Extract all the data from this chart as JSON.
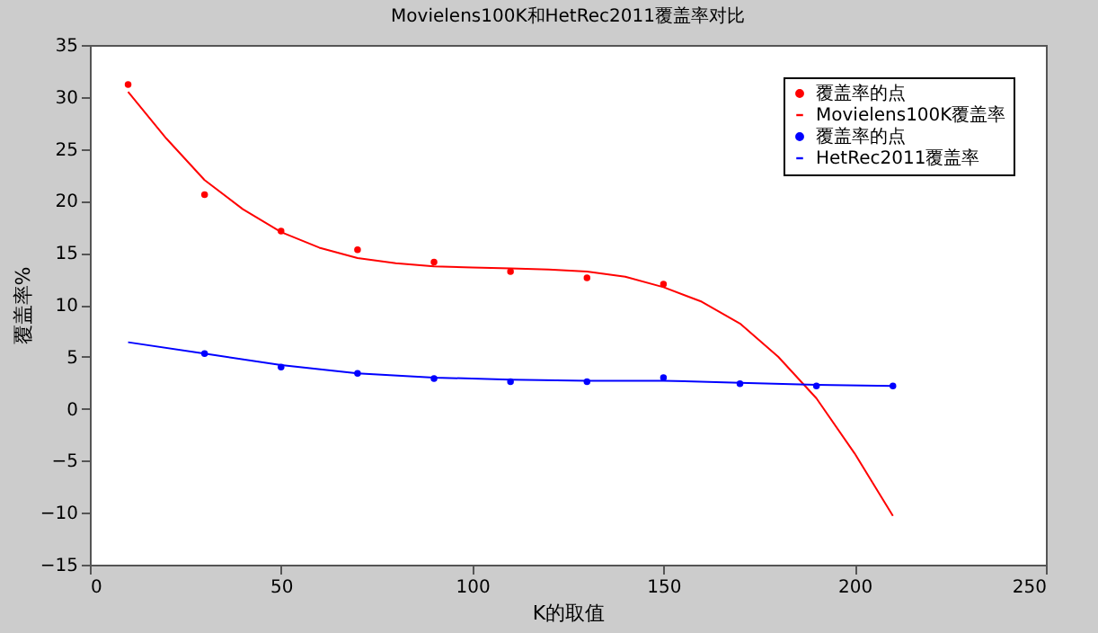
{
  "chart_data": {
    "type": "line",
    "title": "Movielens100K和HetRec2011覆盖率对比",
    "xlabel": "K的取值",
    "ylabel": "覆盖率%",
    "xlim": [
      0,
      250
    ],
    "xticks": [
      0,
      50,
      100,
      150,
      200,
      250
    ],
    "ylim": [
      -15,
      35
    ],
    "yticks": [
      -15,
      -10,
      -5,
      0,
      5,
      10,
      15,
      20,
      25,
      30,
      35
    ],
    "grid": false,
    "legend": "top right",
    "line_style": "solid",
    "series": [
      {
        "name": "覆盖率的点",
        "type": "scatter",
        "marker": "circle",
        "color": "#ff0000",
        "x": [
          10,
          30,
          50,
          70,
          90,
          110,
          130,
          150
        ],
        "values": [
          31.2,
          20.6,
          17.1,
          15.3,
          14.1,
          13.2,
          12.6,
          12.0
        ]
      },
      {
        "name": "Movielens100K覆盖率",
        "type": "line",
        "marker": "none",
        "color": "#ff0000",
        "x": [
          10,
          20,
          30,
          40,
          50,
          60,
          70,
          80,
          90,
          100,
          110,
          120,
          130,
          140,
          150,
          160,
          170,
          180,
          190,
          200,
          210
        ],
        "values": [
          30.5,
          26,
          22,
          19.2,
          17,
          15.5,
          14.5,
          14,
          13.7,
          13.6,
          13.5,
          13.4,
          13.2,
          12.7,
          11.7,
          10.3,
          8.2,
          5.0,
          1.0,
          -4.3,
          -10.3
        ]
      },
      {
        "name": "覆盖率的点",
        "type": "scatter",
        "marker": "circle",
        "color": "#0000ff",
        "x": [
          30,
          50,
          70,
          90,
          110,
          130,
          150,
          170,
          190,
          210
        ],
        "values": [
          5.3,
          4.0,
          3.4,
          2.9,
          2.6,
          2.6,
          3.0,
          2.4,
          2.2,
          2.2
        ]
      },
      {
        "name": "HetRec2011覆盖率",
        "type": "line",
        "marker": "none",
        "color": "#0000ff",
        "x": [
          10,
          30,
          50,
          70,
          90,
          110,
          130,
          150,
          170,
          190,
          210
        ],
        "values": [
          6.4,
          5.3,
          4.2,
          3.4,
          3.0,
          2.8,
          2.7,
          2.7,
          2.5,
          2.3,
          2.2
        ]
      }
    ]
  }
}
